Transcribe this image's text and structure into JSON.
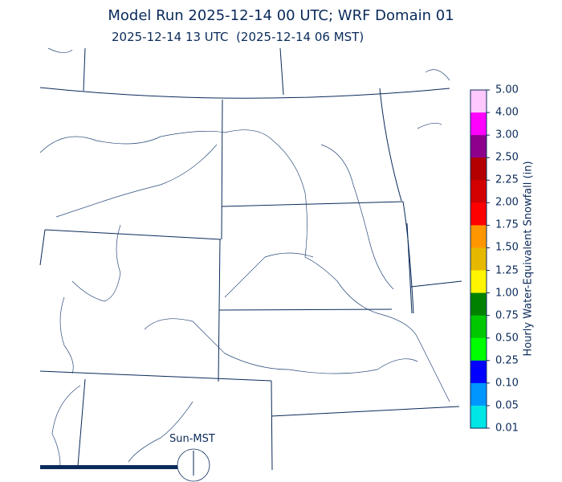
{
  "title": "Model Run 2025-12-14 00 UTC; WRF Domain 01",
  "subtitle": "2025-12-14 13 UTC  (2025-12-14 06 MST)",
  "colorbar": {
    "label": "Hourly Water-Equivalent Snowfall (in)",
    "ticks": [
      "5.00",
      "4.00",
      "3.00",
      "2.50",
      "2.25",
      "2.00",
      "1.75",
      "1.50",
      "1.25",
      "1.00",
      "0.75",
      "0.50",
      "0.25",
      "0.10",
      "0.05",
      "0.01"
    ],
    "colors": [
      "#ffc8ff",
      "#ff00ff",
      "#8c008c",
      "#b40000",
      "#d20000",
      "#ff0000",
      "#ff9600",
      "#e6b800",
      "#fff500",
      "#008200",
      "#00c800",
      "#00ff00",
      "#0000ff",
      "#0096ff",
      "#00e6e6"
    ]
  },
  "sun_indicator": {
    "label": "Sun-MST",
    "progress": 0.33
  },
  "colors": {
    "lines": "#0a2a5a"
  }
}
